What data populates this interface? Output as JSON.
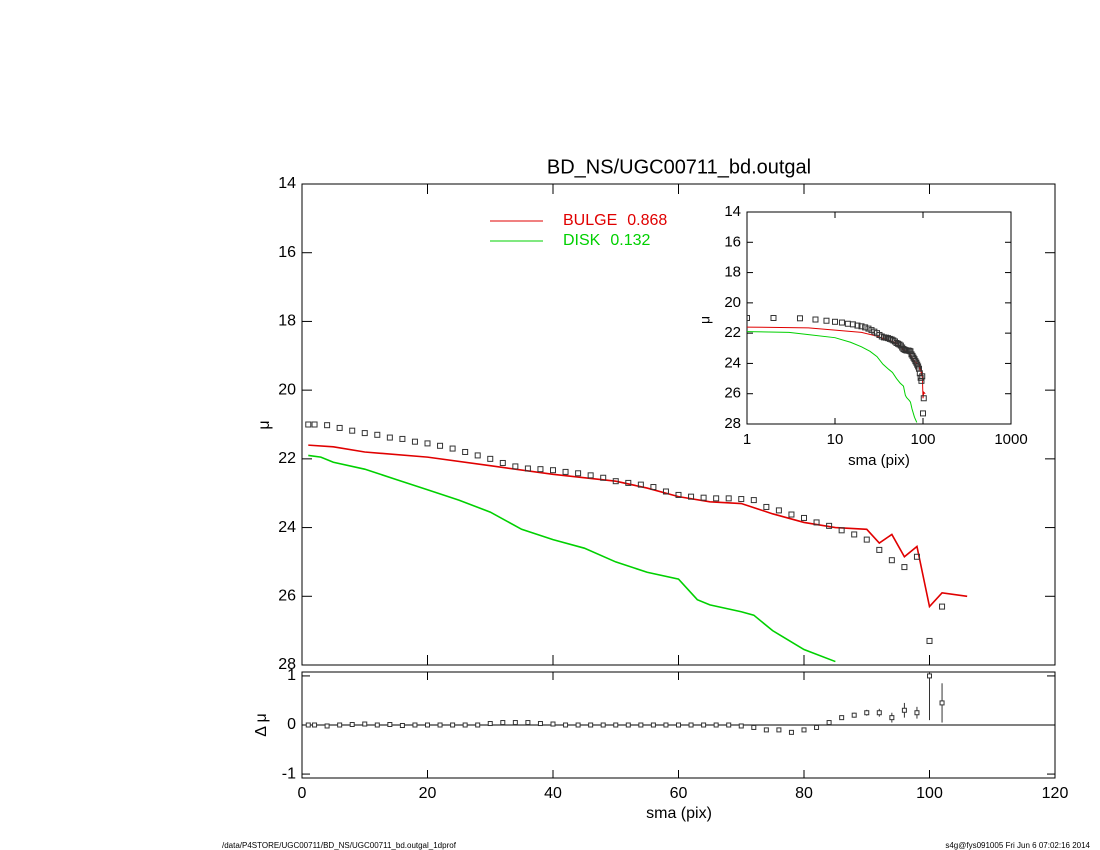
{
  "chart_data": [
    {
      "type": "profile",
      "title": "BD_NS/UGC00711_bd.outgal",
      "y_label": "μ",
      "xlim": [
        0,
        120
      ],
      "xticks": [
        0,
        20,
        40,
        60,
        80,
        100,
        120
      ],
      "xtick_labels": false,
      "ylim": [
        14,
        28
      ],
      "yticks": [
        14,
        16,
        18,
        20,
        22,
        24,
        26,
        28
      ],
      "y_inverted": true,
      "x": [
        1,
        2,
        4,
        6,
        8,
        10,
        12,
        14,
        16,
        18,
        20,
        22,
        24,
        26,
        28,
        30,
        32,
        34,
        36,
        38,
        40,
        42,
        44,
        46,
        48,
        50,
        52,
        54,
        56,
        58,
        60,
        62,
        64,
        66,
        68,
        70,
        72,
        74,
        76,
        78,
        80,
        82,
        84,
        86,
        88,
        90,
        92,
        94,
        96,
        98,
        100,
        102
      ],
      "values": [
        21.0,
        21.0,
        21.02,
        21.1,
        21.18,
        21.25,
        21.3,
        21.38,
        21.42,
        21.5,
        21.55,
        21.62,
        21.7,
        21.8,
        21.9,
        22.0,
        22.12,
        22.22,
        22.28,
        22.3,
        22.33,
        22.38,
        22.42,
        22.48,
        22.55,
        22.65,
        22.7,
        22.75,
        22.82,
        22.95,
        23.05,
        23.1,
        23.13,
        23.15,
        23.15,
        23.17,
        23.2,
        23.4,
        23.5,
        23.62,
        23.72,
        23.85,
        23.95,
        24.08,
        24.2,
        24.35,
        24.65,
        24.95,
        25.15,
        24.85,
        27.3,
        26.3
      ],
      "series": [
        {
          "name": "BULGE",
          "fraction": 0.868,
          "color": "#e00000",
          "x": [
            1,
            5,
            10,
            20,
            30,
            40,
            50,
            55,
            60,
            65,
            70,
            75,
            80,
            85,
            90,
            92,
            94,
            96,
            98,
            100,
            102,
            106
          ],
          "values": [
            21.6,
            21.65,
            21.8,
            21.95,
            22.2,
            22.45,
            22.65,
            22.85,
            23.1,
            23.25,
            23.3,
            23.6,
            23.85,
            24.0,
            24.05,
            24.45,
            24.2,
            24.85,
            24.55,
            26.3,
            25.9,
            26.0
          ]
        },
        {
          "name": "DISK",
          "fraction": 0.132,
          "color": "#00d000",
          "x": [
            1,
            3,
            5,
            10,
            15,
            20,
            25,
            30,
            35,
            40,
            45,
            50,
            55,
            60,
            63,
            65,
            70,
            72,
            75,
            80,
            85
          ],
          "values": [
            21.9,
            21.95,
            22.1,
            22.3,
            22.6,
            22.9,
            23.2,
            23.55,
            24.05,
            24.35,
            24.6,
            25.0,
            25.3,
            25.5,
            26.1,
            26.25,
            26.45,
            26.55,
            27.0,
            27.55,
            27.9
          ]
        }
      ]
    },
    {
      "type": "residual",
      "x_label": "sma (pix)",
      "y_label": "Δ μ",
      "xlim": [
        0,
        120
      ],
      "xticks": [
        0,
        20,
        40,
        60,
        80,
        100,
        120
      ],
      "xtick_labels": true,
      "ylim": [
        -1.08,
        1.08
      ],
      "yticks": [
        -1,
        0,
        1
      ],
      "zero_line": true,
      "x": [
        1,
        2,
        4,
        6,
        8,
        10,
        12,
        14,
        16,
        18,
        20,
        22,
        24,
        26,
        28,
        30,
        32,
        34,
        36,
        38,
        40,
        42,
        44,
        46,
        48,
        50,
        52,
        54,
        56,
        58,
        60,
        62,
        64,
        66,
        68,
        70,
        72,
        74,
        76,
        78,
        80,
        82,
        84,
        86,
        88,
        90,
        92,
        94,
        96,
        98,
        100,
        102
      ],
      "values": [
        0,
        0,
        -0.02,
        0,
        0.01,
        0.02,
        0,
        0.01,
        -0.01,
        0,
        0,
        0,
        0,
        0,
        0,
        0.03,
        0.05,
        0.05,
        0.05,
        0.03,
        0.02,
        0,
        0,
        0,
        0,
        0,
        0,
        0,
        0,
        0,
        0,
        0,
        0,
        0,
        0,
        -0.02,
        -0.05,
        -0.1,
        -0.1,
        -0.15,
        -0.1,
        -0.05,
        0.05,
        0.15,
        0.2,
        0.25,
        0.25,
        0.15,
        0.3,
        0.25,
        1.0,
        0.45
      ],
      "errors": [
        0,
        0,
        0,
        0,
        0,
        0,
        0,
        0,
        0,
        0,
        0,
        0,
        0,
        0,
        0,
        0,
        0,
        0,
        0,
        0,
        0,
        0,
        0,
        0,
        0,
        0,
        0,
        0,
        0,
        0,
        0,
        0,
        0,
        0,
        0,
        0,
        0,
        0,
        0,
        0,
        0,
        0.02,
        0.03,
        0.04,
        0.05,
        0.06,
        0.08,
        0.1,
        0.15,
        0.12,
        0.9,
        0.4
      ]
    },
    {
      "type": "inset",
      "x_label": "sma (pix)",
      "y_label": "μ",
      "xlog": true,
      "xlim": [
        1,
        1000
      ],
      "xticks": [
        1,
        10,
        100,
        1000
      ],
      "xtick_labels": true,
      "ylim": [
        14,
        28
      ],
      "yticks": [
        14,
        16,
        18,
        20,
        22,
        24,
        26,
        28
      ],
      "y_inverted": true
    }
  ],
  "footer": {
    "path": "/data/P4STORE/UGC00711/BD_NS/UGC00711_bd.outgal_1dprof",
    "stamp": "s4g@fys091005  Fri Jun  6 07:02:16 2014"
  }
}
